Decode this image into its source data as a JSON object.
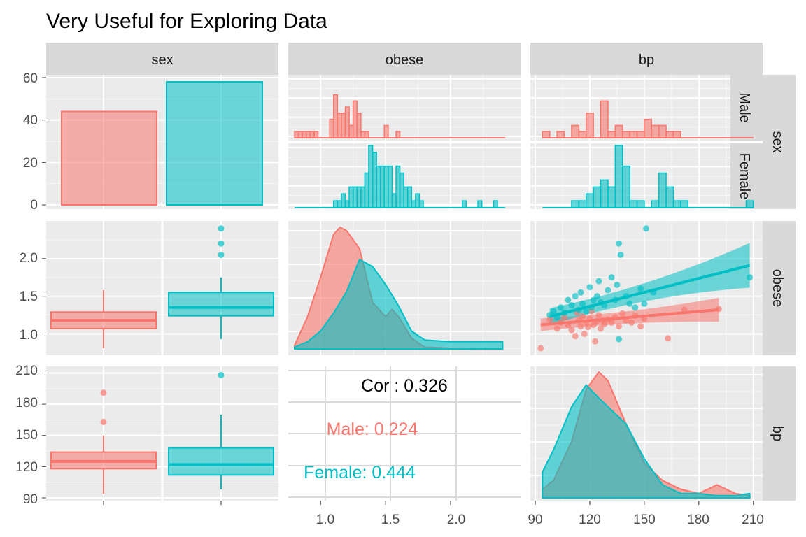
{
  "title": "Very Useful for Exploring Data",
  "colors": {
    "male": "#F8766D",
    "female": "#00BFC4",
    "cor_all": "#000000"
  },
  "column_strips": [
    "sex",
    "obese",
    "bp"
  ],
  "row_strips": [
    "sex",
    "obese",
    "bp"
  ],
  "facet_strips": [
    "Male",
    "Female"
  ],
  "y_ticks": {
    "sex": [
      "0",
      "20",
      "40",
      "60"
    ],
    "obese": [
      "1.0",
      "1.5",
      "2.0"
    ],
    "bp": [
      "90",
      "120",
      "150",
      "180",
      "210"
    ]
  },
  "x_ticks": {
    "obese": [
      "1.0",
      "1.5",
      "2.0"
    ],
    "bp": [
      "90",
      "120",
      "150",
      "180",
      "210"
    ]
  },
  "correlation": {
    "overall": "Cor : 0.326",
    "male": "Male: 0.224",
    "female": "Female: 0.444"
  },
  "chart_data": {
    "type": "scatter",
    "title": "Very Useful for Exploring Data",
    "variables": [
      "sex",
      "obese",
      "bp"
    ],
    "groups": [
      "Male",
      "Female"
    ],
    "sex_counts": {
      "categories": [
        "Male",
        "Female"
      ],
      "values": [
        44,
        58
      ],
      "ylim": [
        0,
        60
      ]
    },
    "obese_by_sex_boxplot": {
      "Male": {
        "min": 0.81,
        "q1": 1.07,
        "median": 1.18,
        "q3": 1.29,
        "max": 1.58,
        "outliers": []
      },
      "Female": {
        "min": 0.93,
        "q1": 1.24,
        "median": 1.35,
        "q3": 1.55,
        "max": 1.75,
        "outliers": [
          2.05,
          2.2,
          2.4
        ]
      }
    },
    "bp_by_sex_boxplot": {
      "Male": {
        "min": 94,
        "q1": 118,
        "median": 125,
        "q3": 134,
        "max": 150,
        "outliers": [
          163,
          191
        ]
      },
      "Female": {
        "min": 98,
        "q1": 112,
        "median": 122,
        "q3": 138,
        "max": 170,
        "outliers": [
          208
        ]
      }
    },
    "obese_histogram": {
      "bins": [
        0.8,
        0.83,
        0.86,
        0.89,
        0.92,
        0.95,
        0.98,
        1.01,
        1.04,
        1.07,
        1.1,
        1.13,
        1.16,
        1.19,
        1.22,
        1.25,
        1.28,
        1.31,
        1.34,
        1.37,
        1.4,
        1.43,
        1.46,
        1.49,
        1.52,
        1.55,
        1.58,
        1.61,
        1.64,
        1.67,
        1.7,
        1.73,
        1.76,
        1.79,
        1.82,
        1.85,
        1.88,
        1.91,
        1.94,
        1.97,
        2.0,
        2.03,
        2.06,
        2.09,
        2.12,
        2.15,
        2.18,
        2.21,
        2.24,
        2.27,
        2.3,
        2.33,
        2.36,
        2.39
      ],
      "Male": [
        1,
        1,
        1,
        1,
        1,
        1,
        0,
        0,
        0,
        3,
        7,
        4,
        4,
        5,
        2,
        6,
        4,
        1,
        1,
        0,
        0,
        0,
        0,
        2,
        0,
        0,
        1,
        0,
        0,
        0,
        0,
        0,
        0,
        0,
        0,
        0,
        0,
        0,
        0,
        0,
        0,
        0,
        0,
        0,
        0,
        0,
        0,
        0,
        0,
        0,
        0,
        0,
        0,
        0
      ],
      "Female": [
        0,
        0,
        0,
        0,
        0,
        0,
        0,
        0,
        0,
        0,
        1,
        1,
        2,
        1,
        3,
        3,
        3,
        3,
        5,
        9,
        8,
        6,
        6,
        6,
        6,
        2,
        6,
        5,
        3,
        3,
        1,
        2,
        1,
        0,
        0,
        0,
        0,
        0,
        0,
        0,
        0,
        0,
        0,
        1,
        0,
        0,
        0,
        1,
        0,
        0,
        0,
        1,
        0,
        0
      ]
    },
    "bp_histogram": {
      "bins": [
        94,
        98,
        102,
        106,
        110,
        114,
        118,
        122,
        126,
        130,
        134,
        138,
        142,
        146,
        150,
        154,
        158,
        162,
        166,
        170,
        174,
        178,
        182,
        186,
        190,
        194,
        198,
        202,
        206
      ],
      "Male": [
        1,
        0,
        1,
        0,
        2,
        1,
        4,
        0,
        6,
        1,
        2,
        1,
        1,
        1,
        3,
        2,
        2,
        1,
        1,
        0,
        0,
        0,
        0,
        0,
        0,
        0,
        0,
        0,
        0
      ],
      "Female": [
        0,
        0,
        0,
        0,
        1,
        1,
        2,
        3,
        4,
        3,
        9,
        6,
        1,
        1,
        0,
        1,
        5,
        3,
        1,
        1,
        0,
        0,
        0,
        0,
        0,
        0,
        0,
        0,
        1
      ]
    },
    "obese_density": {
      "x": [
        0.8,
        0.9,
        1.0,
        1.1,
        1.15,
        1.2,
        1.3,
        1.4,
        1.5,
        1.55,
        1.6,
        1.7,
        1.8,
        2.0,
        2.2,
        2.4
      ],
      "Male": [
        0.1,
        0.9,
        2.0,
        3.2,
        3.4,
        3.3,
        2.8,
        1.3,
        0.9,
        1.1,
        0.9,
        0.3,
        0.05,
        0.02,
        0.0,
        0.0
      ],
      "Female": [
        0.05,
        0.2,
        0.5,
        1.0,
        1.3,
        1.6,
        2.5,
        2.3,
        1.8,
        1.5,
        1.2,
        0.5,
        0.25,
        0.2,
        0.2,
        0.2
      ]
    },
    "bp_density": {
      "x": [
        94,
        100,
        110,
        118,
        125,
        130,
        140,
        150,
        160,
        170,
        180,
        190,
        200,
        208
      ],
      "Male": [
        0.002,
        0.004,
        0.013,
        0.025,
        0.029,
        0.027,
        0.017,
        0.008,
        0.004,
        0.002,
        0.001,
        0.003,
        0.001,
        0.0005
      ],
      "Female": [
        0.006,
        0.011,
        0.021,
        0.026,
        0.023,
        0.021,
        0.017,
        0.009,
        0.003,
        0.001,
        0.001,
        0.0005,
        0.0005,
        0.001
      ]
    },
    "bp_vs_obese_scatter": {
      "x_label": "bp",
      "y_label": "obese",
      "Male": [
        [
          93,
          0.81
        ],
        [
          98,
          1.19
        ],
        [
          102,
          1.07
        ],
        [
          104,
          1.15
        ],
        [
          106,
          1.22
        ],
        [
          108,
          1.12
        ],
        [
          110,
          1.05
        ],
        [
          112,
          0.97
        ],
        [
          113,
          1.28
        ],
        [
          114,
          1.18
        ],
        [
          115,
          1.1
        ],
        [
          116,
          1.23
        ],
        [
          117,
          1.0
        ],
        [
          118,
          1.15
        ],
        [
          119,
          1.09
        ],
        [
          120,
          1.2
        ],
        [
          121,
          1.3
        ],
        [
          122,
          1.12
        ],
        [
          123,
          0.9
        ],
        [
          124,
          1.17
        ],
        [
          125,
          1.25
        ],
        [
          126,
          1.07
        ],
        [
          127,
          1.18
        ],
        [
          128,
          1.13
        ],
        [
          130,
          1.19
        ],
        [
          132,
          1.15
        ],
        [
          134,
          1.22
        ],
        [
          136,
          1.1
        ],
        [
          138,
          1.27
        ],
        [
          140,
          1.18
        ],
        [
          143,
          1.15
        ],
        [
          145,
          1.24
        ],
        [
          148,
          1.1
        ],
        [
          150,
          1.2
        ],
        [
          163,
          0.94
        ],
        [
          172,
          1.32
        ],
        [
          191,
          1.33
        ]
      ],
      "Female": [
        [
          98,
          1.25
        ],
        [
          100,
          1.3
        ],
        [
          102,
          1.22
        ],
        [
          104,
          1.35
        ],
        [
          106,
          1.28
        ],
        [
          108,
          1.45
        ],
        [
          110,
          1.38
        ],
        [
          112,
          1.5
        ],
        [
          114,
          1.32
        ],
        [
          115,
          1.55
        ],
        [
          116,
          1.4
        ],
        [
          118,
          1.3
        ],
        [
          120,
          1.62
        ],
        [
          121,
          1.35
        ],
        [
          122,
          1.45
        ],
        [
          124,
          1.5
        ],
        [
          125,
          1.7
        ],
        [
          126,
          1.42
        ],
        [
          128,
          1.38
        ],
        [
          130,
          1.58
        ],
        [
          132,
          1.75
        ],
        [
          134,
          1.45
        ],
        [
          135,
          1.65
        ],
        [
          136,
          2.2
        ],
        [
          136,
          0.93
        ],
        [
          137,
          2.05
        ],
        [
          140,
          1.5
        ],
        [
          142,
          1.4
        ],
        [
          145,
          1.35
        ],
        [
          148,
          1.6
        ],
        [
          150,
          1.4
        ],
        [
          151,
          2.4
        ],
        [
          155,
          1.55
        ],
        [
          208,
          1.75
        ]
      ],
      "fit_Male": {
        "x": [
          93,
          191
        ],
        "y": [
          1.12,
          1.32
        ]
      },
      "fit_Female": {
        "x": [
          98,
          208
        ],
        "y": [
          1.23,
          1.91
        ]
      }
    },
    "correlation": {
      "overall": 0.326,
      "Male": 0.224,
      "Female": 0.444
    }
  }
}
